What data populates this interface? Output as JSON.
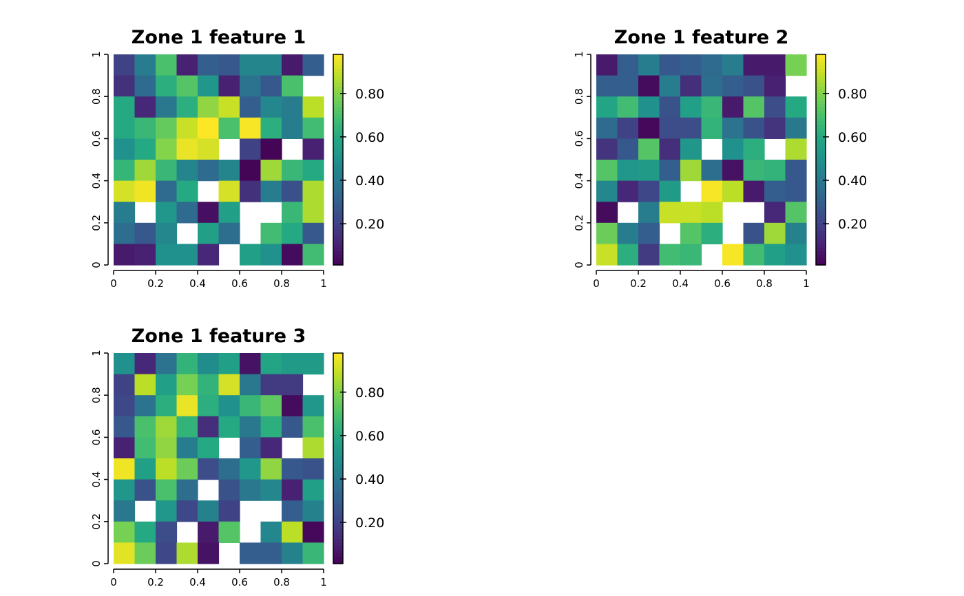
{
  "chart_data": [
    {
      "type": "heatmap",
      "title": "Zone 1 feature 1",
      "x_ticks": [
        "0",
        "0.2",
        "0.4",
        "0.6",
        "0.8",
        "1"
      ],
      "y_ticks": [
        "0",
        "0.2",
        "0.4",
        "0.6",
        "0.8",
        "1"
      ],
      "xlim": [
        0,
        1
      ],
      "ylim": [
        0,
        1
      ],
      "colorbar_ticks": [
        "0.20",
        "0.40",
        "0.60",
        "0.80"
      ],
      "colorbar_range": [
        0.01,
        0.98
      ],
      "colormap": "viridis",
      "rows_top_to_bottom": [
        [
          0.2,
          0.42,
          0.7,
          0.1,
          0.3,
          0.28,
          0.45,
          0.45,
          0.08,
          0.3
        ],
        [
          0.15,
          0.35,
          0.62,
          0.72,
          0.52,
          0.1,
          0.38,
          0.28,
          0.7,
          null
        ],
        [
          0.6,
          0.12,
          0.4,
          0.62,
          0.82,
          0.9,
          0.3,
          0.46,
          0.42,
          0.88
        ],
        [
          0.6,
          0.66,
          0.75,
          0.9,
          0.98,
          0.7,
          0.97,
          0.62,
          0.42,
          0.68
        ],
        [
          0.5,
          0.6,
          0.8,
          0.95,
          0.92,
          null,
          0.2,
          0.02,
          null,
          0.1
        ],
        [
          0.65,
          0.84,
          0.66,
          0.45,
          0.35,
          0.45,
          0.02,
          0.84,
          0.66,
          0.6
        ],
        [
          0.92,
          0.96,
          0.35,
          0.6,
          null,
          0.92,
          0.15,
          0.42,
          0.25,
          0.86
        ],
        [
          0.42,
          null,
          0.52,
          0.35,
          0.05,
          0.56,
          null,
          null,
          0.66,
          0.86
        ],
        [
          0.36,
          0.28,
          0.46,
          null,
          0.56,
          0.36,
          null,
          0.68,
          0.6,
          0.28
        ],
        [
          0.08,
          0.1,
          0.5,
          0.5,
          0.12,
          null,
          0.56,
          0.5,
          0.04,
          0.68
        ]
      ]
    },
    {
      "type": "heatmap",
      "title": "Zone 1 feature 2",
      "x_ticks": [
        "0",
        "0.2",
        "0.4",
        "0.6",
        "0.8",
        "1"
      ],
      "y_ticks": [
        "0",
        "0.2",
        "0.4",
        "0.6",
        "0.8",
        "1"
      ],
      "xlim": [
        0,
        1
      ],
      "ylim": [
        0,
        1
      ],
      "colorbar_ticks": [
        "0.20",
        "0.40",
        "0.60",
        "0.80"
      ],
      "colorbar_range": [
        0.01,
        0.98
      ],
      "colormap": "viridis",
      "rows_top_to_bottom": [
        [
          0.08,
          0.3,
          0.42,
          0.28,
          0.3,
          0.35,
          0.42,
          0.08,
          0.08,
          0.78
        ],
        [
          0.3,
          0.3,
          0.04,
          0.42,
          0.14,
          0.36,
          0.3,
          0.26,
          0.1,
          null
        ],
        [
          0.58,
          0.68,
          0.5,
          0.26,
          0.56,
          0.66,
          0.08,
          0.72,
          0.24,
          0.6
        ],
        [
          0.35,
          0.2,
          0.03,
          0.24,
          0.24,
          0.64,
          0.38,
          0.26,
          0.16,
          0.4
        ],
        [
          0.16,
          0.28,
          0.72,
          0.14,
          0.52,
          null,
          0.5,
          0.62,
          null,
          0.86
        ],
        [
          0.72,
          0.52,
          0.54,
          0.3,
          0.84,
          0.36,
          0.06,
          0.66,
          0.64,
          0.28
        ],
        [
          0.46,
          0.12,
          0.22,
          0.54,
          null,
          0.97,
          0.88,
          0.08,
          0.3,
          0.28
        ],
        [
          0.04,
          null,
          0.42,
          0.9,
          0.9,
          0.88,
          null,
          null,
          0.12,
          0.72
        ],
        [
          0.76,
          0.42,
          0.3,
          null,
          0.72,
          0.62,
          null,
          0.26,
          0.84,
          0.44
        ],
        [
          0.9,
          0.62,
          0.18,
          0.68,
          0.66,
          null,
          0.97,
          0.68,
          0.56,
          0.5
        ]
      ]
    },
    {
      "type": "heatmap",
      "title": "Zone 1 feature 3",
      "x_ticks": [
        "0",
        "0.2",
        "0.4",
        "0.6",
        "0.8",
        "1"
      ],
      "y_ticks": [
        "0",
        "0.2",
        "0.4",
        "0.6",
        "0.8",
        "1"
      ],
      "xlim": [
        0,
        1
      ],
      "ylim": [
        0,
        1
      ],
      "colorbar_ticks": [
        "0.20",
        "0.40",
        "0.60",
        "0.80"
      ],
      "colorbar_range": [
        0.01,
        0.98
      ],
      "colormap": "viridis",
      "rows_top_to_bottom": [
        [
          0.5,
          0.12,
          0.38,
          0.64,
          0.48,
          0.56,
          0.06,
          0.58,
          0.54,
          0.54
        ],
        [
          0.2,
          0.88,
          0.56,
          0.78,
          0.64,
          0.92,
          0.4,
          0.18,
          0.18,
          null
        ],
        [
          0.22,
          0.38,
          0.62,
          0.95,
          0.62,
          0.5,
          0.66,
          0.74,
          0.04,
          0.52
        ],
        [
          0.28,
          0.7,
          0.84,
          0.64,
          0.14,
          0.6,
          0.4,
          0.62,
          0.28,
          0.7
        ],
        [
          0.1,
          0.68,
          0.82,
          0.42,
          0.6,
          null,
          0.3,
          0.12,
          null,
          0.86
        ],
        [
          0.96,
          0.56,
          0.88,
          0.76,
          0.24,
          0.36,
          0.52,
          0.82,
          0.28,
          0.26
        ],
        [
          0.52,
          0.26,
          0.7,
          0.36,
          null,
          0.26,
          0.4,
          0.46,
          0.1,
          0.56
        ],
        [
          0.4,
          null,
          0.52,
          0.22,
          0.44,
          0.2,
          null,
          null,
          0.3,
          0.44
        ],
        [
          0.78,
          0.6,
          0.24,
          null,
          0.08,
          0.72,
          null,
          0.46,
          0.88,
          0.03
        ],
        [
          0.94,
          0.76,
          0.22,
          0.86,
          0.06,
          null,
          0.3,
          0.3,
          0.44,
          0.66
        ]
      ]
    }
  ]
}
